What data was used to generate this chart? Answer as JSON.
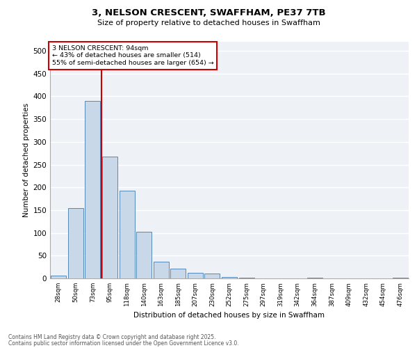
{
  "title_line1": "3, NELSON CRESCENT, SWAFFHAM, PE37 7TB",
  "title_line2": "Size of property relative to detached houses in Swaffham",
  "xlabel": "Distribution of detached houses by size in Swaffham",
  "ylabel": "Number of detached properties",
  "bin_labels": [
    "28sqm",
    "50sqm",
    "73sqm",
    "95sqm",
    "118sqm",
    "140sqm",
    "163sqm",
    "185sqm",
    "207sqm",
    "230sqm",
    "252sqm",
    "275sqm",
    "297sqm",
    "319sqm",
    "342sqm",
    "364sqm",
    "387sqm",
    "409sqm",
    "432sqm",
    "454sqm",
    "476sqm"
  ],
  "bar_values": [
    6,
    155,
    390,
    267,
    193,
    102,
    36,
    21,
    12,
    10,
    3,
    1,
    0,
    0,
    0,
    2,
    0,
    0,
    0,
    0,
    2
  ],
  "bar_color": "#c8d8e8",
  "bar_edge_color": "#5588bb",
  "vline_color": "#cc0000",
  "annotation_text": "3 NELSON CRESCENT: 94sqm\n← 43% of detached houses are smaller (514)\n55% of semi-detached houses are larger (654) →",
  "annotation_box_color": "#ffffff",
  "annotation_edge_color": "#cc0000",
  "ylim": [
    0,
    520
  ],
  "yticks": [
    0,
    50,
    100,
    150,
    200,
    250,
    300,
    350,
    400,
    450,
    500
  ],
  "bg_color": "#eef2f7",
  "grid_color": "#ffffff",
  "footer_line1": "Contains HM Land Registry data © Crown copyright and database right 2025.",
  "footer_line2": "Contains public sector information licensed under the Open Government Licence v3.0."
}
